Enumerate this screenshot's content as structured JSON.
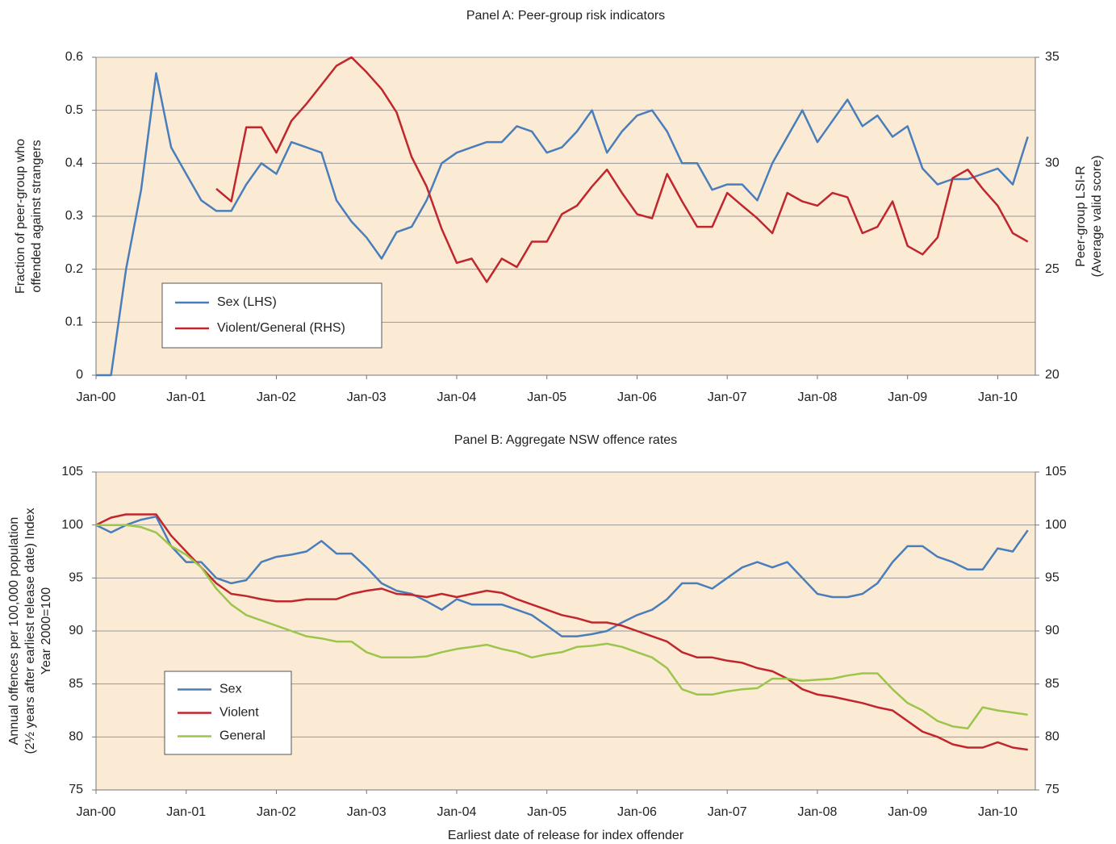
{
  "chart_data": [
    {
      "type": "line",
      "title": "Panel A: Peer-group risk indicators",
      "ylabel": [
        "Fraction of peer-group who",
        "offended against strangers"
      ],
      "y2label": [
        "Peer-group LSI-R",
        "(Average valid score)"
      ],
      "xlim": [
        "2000-01",
        "2010-06"
      ],
      "xticks": [
        {
          "value": "2000-01",
          "label": "Jan-00"
        },
        {
          "value": "2001-01",
          "label": "Jan-01"
        },
        {
          "value": "2002-01",
          "label": "Jan-02"
        },
        {
          "value": "2003-01",
          "label": "Jan-03"
        },
        {
          "value": "2004-01",
          "label": "Jan-04"
        },
        {
          "value": "2005-01",
          "label": "Jan-05"
        },
        {
          "value": "2006-01",
          "label": "Jan-06"
        },
        {
          "value": "2007-01",
          "label": "Jan-07"
        },
        {
          "value": "2008-01",
          "label": "Jan-08"
        },
        {
          "value": "2009-01",
          "label": "Jan-09"
        },
        {
          "value": "2010-01",
          "label": "Jan-10"
        }
      ],
      "ylim": [
        0,
        0.6
      ],
      "yticks": [
        0,
        0.1,
        0.2,
        0.3,
        0.4,
        0.5,
        0.6
      ],
      "y2lim": [
        20,
        35
      ],
      "y2ticks": [
        20,
        25,
        30,
        35
      ],
      "grid": true,
      "legend": "lower left",
      "background": "#fcebd4",
      "x": [
        "2000-01",
        "2000-03",
        "2000-05",
        "2000-07",
        "2000-09",
        "2000-11",
        "2001-01",
        "2001-03",
        "2001-05",
        "2001-07",
        "2001-09",
        "2001-11",
        "2002-01",
        "2002-03",
        "2002-05",
        "2002-07",
        "2002-09",
        "2002-11",
        "2003-01",
        "2003-03",
        "2003-05",
        "2003-07",
        "2003-09",
        "2003-11",
        "2004-01",
        "2004-03",
        "2004-05",
        "2004-07",
        "2004-09",
        "2004-11",
        "2005-01",
        "2005-03",
        "2005-05",
        "2005-07",
        "2005-09",
        "2005-11",
        "2006-01",
        "2006-03",
        "2006-05",
        "2006-07",
        "2006-09",
        "2006-11",
        "2007-01",
        "2007-03",
        "2007-05",
        "2007-07",
        "2007-09",
        "2007-11",
        "2008-01",
        "2008-03",
        "2008-05",
        "2008-07",
        "2008-09",
        "2008-11",
        "2009-01",
        "2009-03",
        "2009-05",
        "2009-07",
        "2009-09",
        "2009-11",
        "2010-01",
        "2010-03",
        "2010-05"
      ],
      "series": [
        {
          "name": "Sex (LHS)",
          "color": "#4a7ebb",
          "values": [
            0,
            0,
            0.2,
            0.35,
            0.57,
            0.43,
            0.38,
            0.33,
            0.31,
            0.31,
            0.36,
            0.4,
            0.38,
            0.44,
            0.43,
            0.42,
            0.33,
            0.29,
            0.26,
            0.22,
            0.27,
            0.28,
            0.33,
            0.4,
            0.42,
            0.43,
            0.44,
            0.44,
            0.47,
            0.46,
            0.42,
            0.43,
            0.46,
            0.5,
            0.42,
            0.46,
            0.49,
            0.5,
            0.46,
            0.4,
            0.4,
            0.35,
            0.36,
            0.36,
            0.33,
            0.4,
            0.45,
            0.5,
            0.44,
            0.48,
            0.52,
            0.47,
            0.49,
            0.45,
            0.47,
            0.39,
            0.36,
            0.37,
            0.37,
            0.38,
            0.39,
            0.36,
            0.45
          ]
        },
        {
          "name": "Violent/General (RHS)",
          "color": "#c0262d",
          "axis": "y2",
          "values": [
            null,
            null,
            null,
            null,
            null,
            null,
            null,
            null,
            28.8,
            28.2,
            31.7,
            31.7,
            30.5,
            32.0,
            32.8,
            33.7,
            34.6,
            35.0,
            34.3,
            33.5,
            32.4,
            30.3,
            28.9,
            26.9,
            25.3,
            25.5,
            24.4,
            25.5,
            25.1,
            26.3,
            26.3,
            27.6,
            28.0,
            28.9,
            29.7,
            28.6,
            27.6,
            27.4,
            29.5,
            28.2,
            27.0,
            27.0,
            28.6,
            28.0,
            27.4,
            26.7,
            28.6,
            28.2,
            28.0,
            28.6,
            28.4,
            26.7,
            27.0,
            28.2,
            26.1,
            25.7,
            26.5,
            29.3,
            29.7,
            28.8,
            28.0,
            26.7,
            26.3
          ]
        }
      ]
    },
    {
      "type": "line",
      "title": "Panel B: Aggregate NSW offence rates",
      "ylabel": [
        "Annual offences per 100,000 population",
        "(2½ years after earliest release date) Index",
        "Year 2000=100"
      ],
      "xlabel": "Earliest date of release for index offender",
      "xlim": [
        "2000-01",
        "2010-06"
      ],
      "xticks": [
        {
          "value": "2000-01",
          "label": "Jan-00"
        },
        {
          "value": "2001-01",
          "label": "Jan-01"
        },
        {
          "value": "2002-01",
          "label": "Jan-02"
        },
        {
          "value": "2003-01",
          "label": "Jan-03"
        },
        {
          "value": "2004-01",
          "label": "Jan-04"
        },
        {
          "value": "2005-01",
          "label": "Jan-05"
        },
        {
          "value": "2006-01",
          "label": "Jan-06"
        },
        {
          "value": "2007-01",
          "label": "Jan-07"
        },
        {
          "value": "2008-01",
          "label": "Jan-08"
        },
        {
          "value": "2009-01",
          "label": "Jan-09"
        },
        {
          "value": "2010-01",
          "label": "Jan-10"
        }
      ],
      "ylim": [
        75,
        105
      ],
      "yticks": [
        75,
        80,
        85,
        90,
        95,
        100,
        105
      ],
      "y2lim": [
        75,
        105
      ],
      "y2ticks": [
        75,
        80,
        85,
        90,
        95,
        100,
        105
      ],
      "grid": true,
      "legend": "lower left",
      "background": "#fcebd4",
      "x": [
        "2000-01",
        "2000-03",
        "2000-05",
        "2000-07",
        "2000-09",
        "2000-11",
        "2001-01",
        "2001-03",
        "2001-05",
        "2001-07",
        "2001-09",
        "2001-11",
        "2002-01",
        "2002-03",
        "2002-05",
        "2002-07",
        "2002-09",
        "2002-11",
        "2003-01",
        "2003-03",
        "2003-05",
        "2003-07",
        "2003-09",
        "2003-11",
        "2004-01",
        "2004-03",
        "2004-05",
        "2004-07",
        "2004-09",
        "2004-11",
        "2005-01",
        "2005-03",
        "2005-05",
        "2005-07",
        "2005-09",
        "2005-11",
        "2006-01",
        "2006-03",
        "2006-05",
        "2006-07",
        "2006-09",
        "2006-11",
        "2007-01",
        "2007-03",
        "2007-05",
        "2007-07",
        "2007-09",
        "2007-11",
        "2008-01",
        "2008-03",
        "2008-05",
        "2008-07",
        "2008-09",
        "2008-11",
        "2009-01",
        "2009-03",
        "2009-05",
        "2009-07",
        "2009-09",
        "2009-11",
        "2010-01",
        "2010-03",
        "2010-05"
      ],
      "series": [
        {
          "name": "Sex",
          "color": "#4a7ebb",
          "values": [
            100,
            99.3,
            100,
            100.5,
            100.8,
            98,
            96.5,
            96.5,
            95,
            94.5,
            94.8,
            96.5,
            97,
            97.2,
            97.5,
            98.5,
            97.3,
            97.3,
            96,
            94.5,
            93.8,
            93.5,
            92.8,
            92,
            93,
            92.5,
            92.5,
            92.5,
            92,
            91.5,
            90.5,
            89.5,
            89.5,
            89.7,
            90,
            90.8,
            91.5,
            92,
            93,
            94.5,
            94.5,
            94,
            95,
            96,
            96.5,
            96,
            96.5,
            95,
            93.5,
            93.2,
            93.2,
            93.5,
            94.5,
            96.5,
            98,
            98,
            97,
            96.5,
            95.8,
            95.8,
            97.8,
            97.5,
            99.5
          ]
        },
        {
          "name": "Violent",
          "color": "#c0262d",
          "values": [
            100,
            100.7,
            101,
            101,
            101,
            99,
            97.5,
            96,
            94.5,
            93.5,
            93.3,
            93,
            92.8,
            92.8,
            93,
            93,
            93,
            93.5,
            93.8,
            94,
            93.5,
            93.4,
            93.2,
            93.5,
            93.2,
            93.5,
            93.8,
            93.6,
            93,
            92.5,
            92,
            91.5,
            91.2,
            90.8,
            90.8,
            90.5,
            90,
            89.5,
            89,
            88,
            87.5,
            87.5,
            87.2,
            87,
            86.5,
            86.2,
            85.5,
            84.5,
            84,
            83.8,
            83.5,
            83.2,
            82.8,
            82.5,
            81.5,
            80.5,
            80,
            79.3,
            79,
            79,
            79.5,
            79,
            78.8
          ]
        },
        {
          "name": "General",
          "color": "#9bc64b",
          "values": [
            100,
            100,
            100,
            99.8,
            99.3,
            98,
            97.2,
            96,
            94,
            92.5,
            91.5,
            91,
            90.5,
            90,
            89.5,
            89.3,
            89,
            89,
            88,
            87.5,
            87.5,
            87.5,
            87.6,
            88,
            88.3,
            88.5,
            88.7,
            88.3,
            88,
            87.5,
            87.8,
            88,
            88.5,
            88.6,
            88.8,
            88.5,
            88,
            87.5,
            86.5,
            84.5,
            84,
            84,
            84.3,
            84.5,
            84.6,
            85.5,
            85.5,
            85.3,
            85.4,
            85.5,
            85.8,
            86,
            86,
            84.5,
            83.2,
            82.5,
            81.5,
            81,
            80.8,
            82.8,
            82.5,
            82.3,
            82.1
          ]
        }
      ]
    }
  ]
}
